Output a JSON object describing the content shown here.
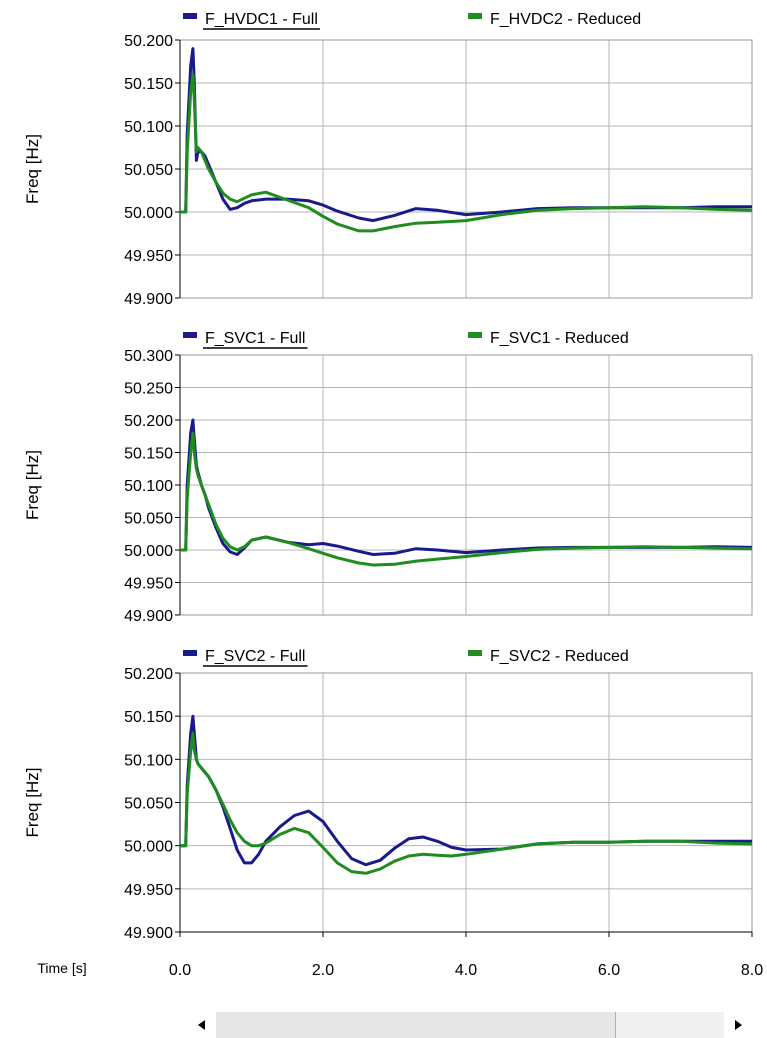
{
  "chart_data": [
    {
      "type": "line",
      "ylabel": "Freq [Hz]",
      "ylim": [
        49.9,
        50.2
      ],
      "yticks": [
        "50.200",
        "50.150",
        "50.100",
        "50.050",
        "50.000",
        "49.950",
        "49.900"
      ],
      "xlim": [
        0,
        8
      ],
      "grid": true,
      "legend_placement": "top",
      "series": [
        {
          "name": "F_HVDC1 - Full",
          "color": "#1a1a8c",
          "x": [
            0,
            0.08,
            0.1,
            0.15,
            0.18,
            0.2,
            0.23,
            0.25,
            0.3,
            0.35,
            0.4,
            0.5,
            0.6,
            0.7,
            0.8,
            0.9,
            1.0,
            1.2,
            1.5,
            1.8,
            2.0,
            2.2,
            2.5,
            2.7,
            3.0,
            3.3,
            3.6,
            4.0,
            4.5,
            5.0,
            5.5,
            6.0,
            6.5,
            7.0,
            7.5,
            8.0
          ],
          "y": [
            50.0,
            50.0,
            50.09,
            50.17,
            50.19,
            50.15,
            50.06,
            50.07,
            50.07,
            50.065,
            50.055,
            50.035,
            50.015,
            50.003,
            50.005,
            50.01,
            50.013,
            50.015,
            50.015,
            50.013,
            50.008,
            50.001,
            49.993,
            49.99,
            49.996,
            50.004,
            50.002,
            49.997,
            50.0,
            50.004,
            50.005,
            50.005,
            50.005,
            50.005,
            50.006,
            50.006
          ]
        },
        {
          "name": "F_HVDC2 - Reduced",
          "color": "#1e8c1e",
          "x": [
            0,
            0.08,
            0.1,
            0.15,
            0.18,
            0.2,
            0.23,
            0.25,
            0.3,
            0.35,
            0.4,
            0.5,
            0.6,
            0.7,
            0.8,
            0.9,
            1.0,
            1.2,
            1.5,
            1.8,
            2.0,
            2.2,
            2.5,
            2.7,
            3.0,
            3.3,
            3.6,
            4.0,
            4.5,
            5.0,
            5.5,
            6.0,
            6.5,
            7.0,
            7.5,
            8.0
          ],
          "y": [
            50.0,
            50.0,
            50.07,
            50.14,
            50.16,
            50.13,
            50.07,
            50.075,
            50.07,
            50.06,
            50.05,
            50.035,
            50.022,
            50.015,
            50.012,
            50.016,
            50.02,
            50.023,
            50.014,
            50.005,
            49.995,
            49.986,
            49.978,
            49.978,
            49.983,
            49.987,
            49.988,
            49.99,
            49.997,
            50.002,
            50.004,
            50.005,
            50.006,
            50.005,
            50.003,
            50.002
          ]
        }
      ]
    },
    {
      "type": "line",
      "ylabel": "Freq [Hz]",
      "ylim": [
        49.9,
        50.3
      ],
      "yticks": [
        "50.300",
        "50.250",
        "50.200",
        "50.150",
        "50.100",
        "50.050",
        "50.000",
        "49.950",
        "49.900"
      ],
      "xlim": [
        0,
        8
      ],
      "grid": true,
      "legend_placement": "top",
      "series": [
        {
          "name": "F_SVC1 - Full",
          "color": "#1a1a8c",
          "x": [
            0,
            0.08,
            0.1,
            0.15,
            0.18,
            0.2,
            0.23,
            0.25,
            0.3,
            0.35,
            0.4,
            0.5,
            0.6,
            0.7,
            0.8,
            0.9,
            1.0,
            1.2,
            1.5,
            1.8,
            2.0,
            2.2,
            2.5,
            2.7,
            3.0,
            3.3,
            3.6,
            4.0,
            4.5,
            5.0,
            5.5,
            6.0,
            6.5,
            7.0,
            7.5,
            8.0
          ],
          "y": [
            50.0,
            50.0,
            50.1,
            50.18,
            50.2,
            50.17,
            50.13,
            50.12,
            50.1,
            50.085,
            50.065,
            50.035,
            50.01,
            49.997,
            49.993,
            50.003,
            50.015,
            50.02,
            50.012,
            50.008,
            50.01,
            50.006,
            49.998,
            49.993,
            49.995,
            50.002,
            50.0,
            49.996,
            50.0,
            50.003,
            50.004,
            50.004,
            50.004,
            50.004,
            50.005,
            50.004
          ]
        },
        {
          "name": "F_SVC1 - Reduced",
          "color": "#1e8c1e",
          "x": [
            0,
            0.08,
            0.1,
            0.15,
            0.18,
            0.2,
            0.23,
            0.25,
            0.3,
            0.35,
            0.4,
            0.5,
            0.6,
            0.7,
            0.8,
            0.9,
            1.0,
            1.2,
            1.5,
            1.8,
            2.0,
            2.2,
            2.5,
            2.7,
            3.0,
            3.3,
            3.6,
            4.0,
            4.5,
            5.0,
            5.5,
            6.0,
            6.5,
            7.0,
            7.5,
            8.0
          ],
          "y": [
            50.0,
            50.0,
            50.08,
            50.15,
            50.18,
            50.15,
            50.125,
            50.115,
            50.1,
            50.085,
            50.07,
            50.04,
            50.018,
            50.005,
            50.0,
            50.005,
            50.015,
            50.02,
            50.012,
            50.002,
            49.995,
            49.988,
            49.98,
            49.977,
            49.978,
            49.983,
            49.986,
            49.99,
            49.996,
            50.001,
            50.003,
            50.004,
            50.005,
            50.004,
            50.003,
            50.002
          ]
        }
      ]
    },
    {
      "type": "line",
      "ylabel": "Freq [Hz]",
      "xlabel": "Time [s]",
      "ylim": [
        49.9,
        50.2
      ],
      "yticks": [
        "50.200",
        "50.150",
        "50.100",
        "50.050",
        "50.000",
        "49.950",
        "49.900"
      ],
      "xlim": [
        0,
        8
      ],
      "xticks": [
        "0.0",
        "2.0",
        "4.0",
        "6.0",
        "8.0"
      ],
      "grid": true,
      "legend_placement": "top",
      "series": [
        {
          "name": "F_SVC2 - Full",
          "color": "#1a1a8c",
          "x": [
            0,
            0.08,
            0.1,
            0.15,
            0.18,
            0.2,
            0.23,
            0.25,
            0.3,
            0.4,
            0.5,
            0.6,
            0.7,
            0.8,
            0.9,
            1.0,
            1.1,
            1.2,
            1.4,
            1.6,
            1.8,
            2.0,
            2.2,
            2.4,
            2.6,
            2.8,
            3.0,
            3.2,
            3.4,
            3.6,
            3.8,
            4.0,
            4.5,
            5.0,
            5.5,
            6.0,
            6.5,
            7.0,
            7.5,
            8.0
          ],
          "y": [
            50.0,
            50.0,
            50.07,
            50.13,
            50.15,
            50.13,
            50.1,
            50.095,
            50.09,
            50.08,
            50.065,
            50.045,
            50.02,
            49.995,
            49.98,
            49.98,
            49.99,
            50.005,
            50.022,
            50.035,
            50.04,
            50.028,
            50.005,
            49.985,
            49.978,
            49.983,
            49.997,
            50.008,
            50.01,
            50.005,
            49.998,
            49.995,
            49.996,
            50.002,
            50.004,
            50.004,
            50.005,
            50.005,
            50.005,
            50.005
          ]
        },
        {
          "name": "F_SVC2 - Reduced",
          "color": "#1e8c1e",
          "x": [
            0,
            0.08,
            0.1,
            0.15,
            0.18,
            0.2,
            0.23,
            0.25,
            0.3,
            0.4,
            0.5,
            0.6,
            0.7,
            0.8,
            0.9,
            1.0,
            1.1,
            1.2,
            1.4,
            1.6,
            1.8,
            2.0,
            2.2,
            2.4,
            2.6,
            2.8,
            3.0,
            3.2,
            3.4,
            3.6,
            3.8,
            4.0,
            4.5,
            5.0,
            5.5,
            6.0,
            6.5,
            7.0,
            7.5,
            8.0
          ],
          "y": [
            50.0,
            50.0,
            50.06,
            50.11,
            50.13,
            50.11,
            50.1,
            50.095,
            50.09,
            50.08,
            50.065,
            50.048,
            50.03,
            50.015,
            50.005,
            50.0,
            50.0,
            50.003,
            50.013,
            50.02,
            50.015,
            49.998,
            49.98,
            49.97,
            49.968,
            49.973,
            49.982,
            49.988,
            49.99,
            49.989,
            49.988,
            49.99,
            49.996,
            50.002,
            50.004,
            50.004,
            50.005,
            50.005,
            50.003,
            50.002
          ]
        }
      ]
    }
  ],
  "scrollbar": {
    "left_arrow": "◀",
    "right_arrow": "▶"
  }
}
